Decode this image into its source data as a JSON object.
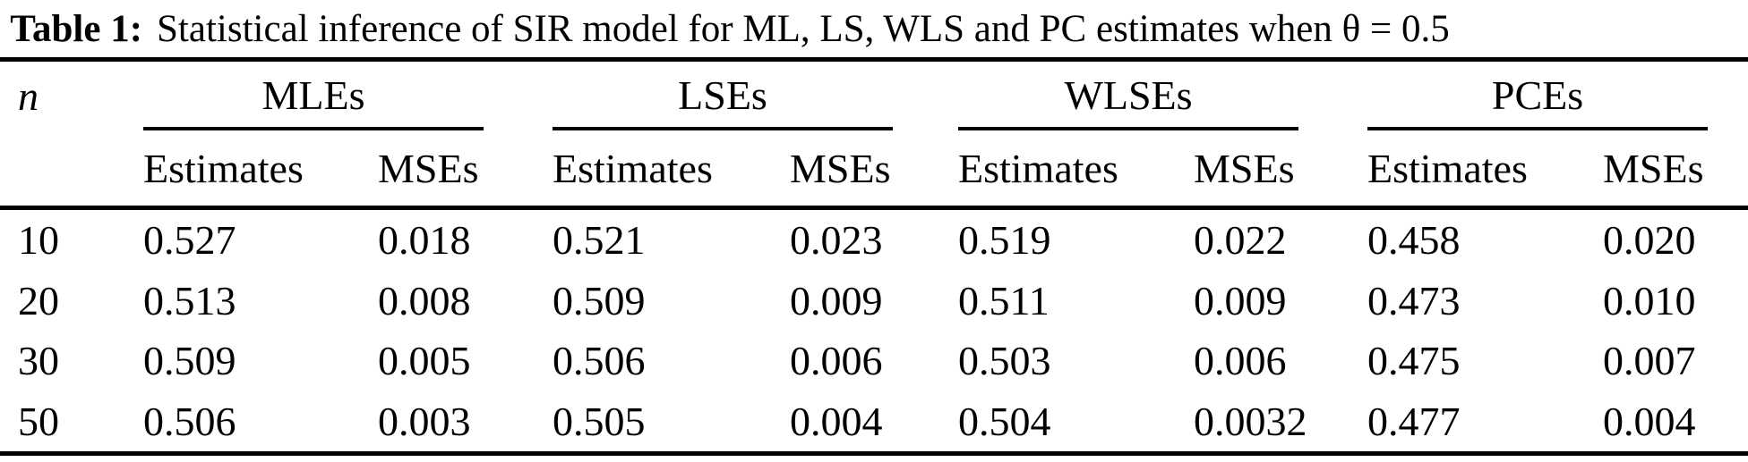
{
  "caption": {
    "label": "Table 1:",
    "text": "Statistical inference of SIR model for ML, LS, WLS and PC estimates when θ = 0.5"
  },
  "table": {
    "n_header": "n",
    "groups": [
      {
        "label": "MLEs"
      },
      {
        "label": "LSEs"
      },
      {
        "label": "WLSEs"
      },
      {
        "label": "PCEs"
      }
    ],
    "subheader_estimates": "Estimates",
    "subheader_mses": "MSEs",
    "rows": [
      {
        "n": "10",
        "values": [
          "0.527",
          "0.018",
          "0.521",
          "0.023",
          "0.519",
          "0.022",
          "0.458",
          "0.020"
        ]
      },
      {
        "n": "20",
        "values": [
          "0.513",
          "0.008",
          "0.509",
          "0.009",
          "0.511",
          "0.009",
          "0.473",
          "0.010"
        ]
      },
      {
        "n": "30",
        "values": [
          "0.509",
          "0.005",
          "0.506",
          "0.006",
          "0.503",
          "0.006",
          "0.475",
          "0.007"
        ]
      },
      {
        "n": "50",
        "values": [
          "0.506",
          "0.003",
          "0.505",
          "0.004",
          "0.504",
          "0.0032",
          "0.477",
          "0.004"
        ]
      }
    ]
  },
  "colors": {
    "text": "#000000",
    "background": "#ffffff",
    "rule": "#000000"
  }
}
